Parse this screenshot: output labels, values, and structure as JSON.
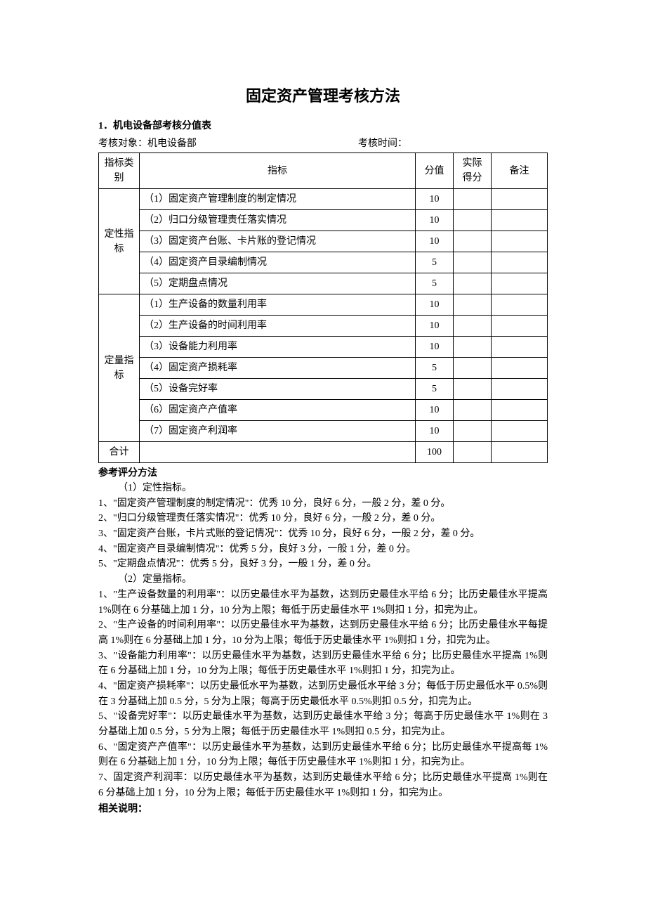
{
  "title": "固定资产管理考核方法",
  "section1": {
    "heading": "1．机电设备部考核分值表",
    "meta_target_label": "考核对象：",
    "meta_target_value": "机电设备部",
    "meta_time_label": "考核时间：",
    "meta_time_value": ""
  },
  "table": {
    "headers": {
      "category": "指标类别",
      "indicator": "指标",
      "score": "分值",
      "actual": "实际得分",
      "remark": "备注"
    },
    "categories": {
      "qualitative": "定性指标",
      "quantitative": "定量指标",
      "total": "合计"
    },
    "qualitative_rows": [
      {
        "label": "（1）固定资产管理制度的制定情况",
        "score": "10"
      },
      {
        "label": "（2）归口分级管理责任落实情况",
        "score": "10"
      },
      {
        "label": "（3）固定资产台账、卡片账的登记情况",
        "score": "10"
      },
      {
        "label": "（4）固定资产目录编制情况",
        "score": "5"
      },
      {
        "label": "（5）定期盘点情况",
        "score": "5"
      }
    ],
    "quantitative_rows": [
      {
        "label": "（1）生产设备的数量利用率",
        "score": "10"
      },
      {
        "label": "（2）生产设备的时间利用率",
        "score": "10"
      },
      {
        "label": "（3）设备能力利用率",
        "score": "10"
      },
      {
        "label": "（4）固定资产损耗率",
        "score": "5"
      },
      {
        "label": "（5）设备完好率",
        "score": "5"
      },
      {
        "label": "（6）固定资产产值率",
        "score": "10"
      },
      {
        "label": "（7）固定资产利润率",
        "score": "10"
      }
    ],
    "total_score": "100"
  },
  "method": {
    "heading": "参考评分方法",
    "sub1": "（1）定性指标。",
    "qual_items": [
      "1、\"固定资产管理制度的制定情况\"：优秀 10 分，良好 6 分，一般 2 分，差 0 分。",
      "2、\"归口分级管理责任落实情况\"：优秀 10 分，良好 6 分，一般 2 分，差 0 分。",
      "3、\"固定资产台账，卡片式账的登记情况\"：优秀 10 分，良好 6 分，一般 2 分，差 0 分。",
      "4、\"固定资产目录编制情况\"：优秀 5 分，良好 3 分，一般 1 分，差 0 分。",
      "5、\"定期盘点情况\"：优秀 5 分，良好 3 分，一般 1 分，差 0 分。"
    ],
    "sub2": "（2）定量指标。",
    "quant_items": [
      "1、\"生产设备数量的利用率\"：以历史最佳水平为基数，达到历史最佳水平给 6 分；比历史最佳水平提高 1%则在 6 分基础上加 1 分，10 分为上限；每低于历史最佳水平 1%则扣 1 分，扣完为止。",
      "2、\"生产设备的时间利用率\"：以历史最佳水平为基数，达到历史最佳水平给 6 分；比历史最佳水平每提高 1%则在 6 分基础上加 1 分，10 分为上限；每低于历史最佳水平 1%则扣 1 分，扣完为止。",
      "3、\"设备能力利用率\"：以历史最佳水平为基数，达到历史最佳水平给 6 分；比历史最佳水平提高 1%则在 6 分基础上加 1 分，10 分为上限；每低于历史最佳水平 1%则扣 1 分，扣完为止。",
      "4、\"固定资产损耗率\"：以历史最低水平为基数，达到历史最低水平给 3 分；每低于历史最低水平 0.5%则在 3 分基础上加 0.5 分，5 分为上限；每高于历史最低水平 0.5%则扣 0.5 分，扣完为止。",
      "5、\"设备完好率\"：以历史最佳水平为基数，达到历史最佳水平给 3 分；每高于历史最佳水平 1%则在 3 分基础上加 0.5 分，5 分为上限；每低于历史最佳水平 1%则扣 0.5 分，扣完为止。",
      "6、\"固定资产产值率\"：以历史最佳水平为基数，达到历史最佳水平给 6 分；比历史最佳水平提高每 1%则在 6 分基础上加 1 分，10 分为上限；每低于历史最佳水平 1%则扣 1 分，扣完为止。",
      "7、固定资产利润率：以历史最佳水平为基数，达到历史最佳水平给 6 分；比历史最佳水平提高 1%则在 6 分基础上加 1 分，10 分为上限；每低于历史最佳水平 1%则扣 1 分，扣完为止。"
    ]
  },
  "notes_heading": "相关说明："
}
